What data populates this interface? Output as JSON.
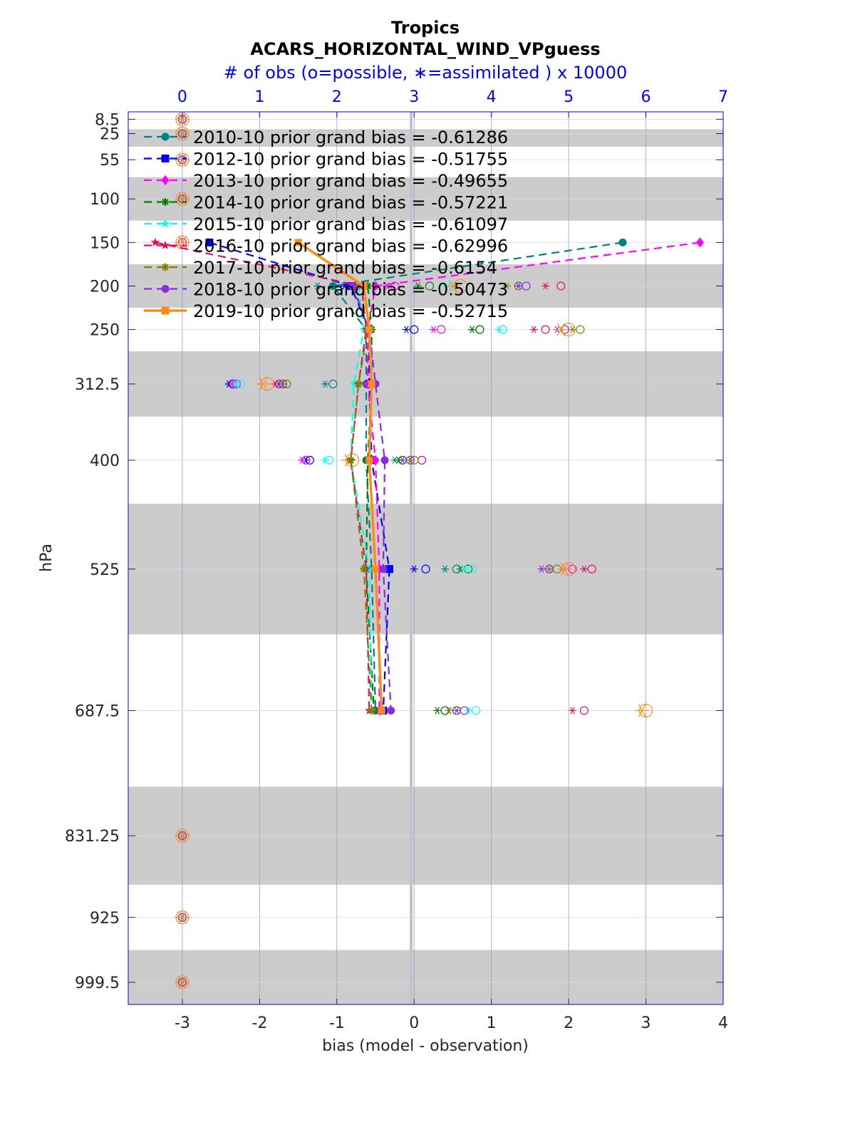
{
  "chart_data": {
    "type": "line",
    "title": "Tropics",
    "subtitle": "ACARS_HORIZONTAL_WIND_VPguess",
    "top_axis_label": "# of obs (o=possible, ∗=assimilated ) x 10000",
    "xlabel": "bias (model - observation)",
    "ylabel": "hPa",
    "xlim": [
      -3.7,
      4.0
    ],
    "x_ticks": [
      -3,
      -2,
      -1,
      0,
      1,
      2,
      3,
      4
    ],
    "x_tick_labels": [
      "-3",
      "-2",
      "-1",
      "0",
      "1",
      "2",
      "3",
      "4"
    ],
    "top_xlim": [
      -0.7,
      7.0
    ],
    "top_ticks": [
      0,
      1,
      2,
      3,
      4,
      5,
      6,
      7
    ],
    "top_tick_labels": [
      "0",
      "1",
      "2",
      "3",
      "4",
      "5",
      "6",
      "7"
    ],
    "y_scale": "pressure (reversed)",
    "ylim": [
      0,
      1025
    ],
    "pressure_levels": [
      8.5,
      25,
      55,
      100,
      150,
      200,
      250,
      312.5,
      400,
      525,
      687.5,
      831.25,
      925,
      999.5
    ],
    "y_tick_labels": [
      "8.5",
      "25",
      "55",
      "100",
      "150",
      "200",
      "250",
      "312.5",
      "400",
      "525",
      "687.5",
      "831.25",
      "925",
      "999.5"
    ],
    "layer_edges": [
      0,
      20,
      40,
      75,
      125,
      175,
      225,
      275,
      350,
      450,
      600,
      775,
      887.5,
      962.5,
      1025
    ],
    "grid": true,
    "legend_location": "top-left",
    "series": [
      {
        "name": "2010-10",
        "legend": "2010-10 prior grand bias = -0.61286",
        "color": "#008080",
        "marker": "circle",
        "style": "dashed",
        "bias": [
          null,
          null,
          null,
          null,
          2.7,
          -1.05,
          -0.62,
          -0.62,
          -0.62,
          -0.55,
          -0.5,
          null,
          null,
          null
        ],
        "obs_possible": [
          0,
          0,
          0,
          0,
          null,
          2.25,
          3.85,
          1.95,
          2.85,
          3.55,
          3.55,
          0,
          0,
          0
        ],
        "obs_assim": [
          0,
          0,
          0,
          0,
          null,
          1.75,
          3.75,
          1.85,
          2.75,
          3.4,
          3.45,
          0,
          0,
          0
        ]
      },
      {
        "name": "2012-10",
        "legend": "2012-10 prior grand bias = -0.51755",
        "color": "#0000ff",
        "marker": "square",
        "style": "dashed",
        "bias": [
          null,
          null,
          null,
          null,
          -2.65,
          -0.82,
          -0.58,
          -0.58,
          -0.55,
          -0.32,
          -0.4,
          null,
          null,
          null
        ],
        "obs_possible": [
          0,
          0,
          0,
          0,
          null,
          2.25,
          3.0,
          0.65,
          1.65,
          3.15,
          3.55,
          0,
          0,
          0
        ],
        "obs_assim": [
          0,
          0,
          0,
          0,
          null,
          2.1,
          2.9,
          0.6,
          1.6,
          3.0,
          3.45,
          0,
          0,
          0
        ]
      },
      {
        "name": "2013-10",
        "legend": "2013-10 prior grand bias = -0.49655",
        "color": "#ff00ff",
        "marker": "diamond",
        "style": "dashed",
        "bias": [
          null,
          null,
          null,
          null,
          3.7,
          -0.5,
          -0.6,
          -0.6,
          -0.5,
          -0.45,
          -0.45,
          null,
          null,
          null
        ],
        "obs_possible": [
          0,
          0,
          0,
          0,
          null,
          2.75,
          3.35,
          0.7,
          1.6,
          5.05,
          3.4,
          0,
          0,
          0
        ],
        "obs_assim": [
          0,
          0,
          0,
          0,
          null,
          2.65,
          3.25,
          0.65,
          1.55,
          4.95,
          3.3,
          0,
          0,
          0
        ]
      },
      {
        "name": "2014-10",
        "legend": "2014-10 prior grand bias = -0.57221",
        "color": "#008000",
        "marker": "star",
        "style": "dashed",
        "bias": [
          null,
          null,
          null,
          null,
          null,
          -0.6,
          -0.55,
          -0.55,
          -0.6,
          -0.62,
          -0.52,
          null,
          null,
          null
        ],
        "obs_possible": [
          0,
          0,
          0,
          0,
          null,
          3.2,
          3.85,
          1.35,
          2.85,
          3.7,
          3.4,
          0,
          0,
          0
        ],
        "obs_assim": [
          0,
          0,
          0,
          0,
          null,
          3.05,
          3.75,
          1.3,
          2.8,
          3.6,
          3.3,
          0,
          0,
          0
        ]
      },
      {
        "name": "2015-10",
        "legend": "2015-10 prior grand bias = -0.61097",
        "color": "#00ffff",
        "marker": "hexagram",
        "style": "dashed",
        "bias": [
          null,
          null,
          null,
          null,
          null,
          -0.72,
          -0.65,
          -0.78,
          -0.82,
          -0.58,
          -0.55,
          null,
          null,
          null
        ],
        "obs_possible": [
          0,
          0,
          0,
          0,
          null,
          3.5,
          4.15,
          0.75,
          1.9,
          3.75,
          3.8,
          0,
          0,
          0
        ],
        "obs_assim": [
          0,
          0,
          0,
          0,
          null,
          3.4,
          4.1,
          0.7,
          1.85,
          3.65,
          3.7,
          0,
          0,
          0
        ]
      },
      {
        "name": "2016-10",
        "legend": "2016-10 prior grand bias = -0.62996",
        "color": "#e0115f",
        "marker": "pentagram",
        "style": "dashed",
        "bias": [
          null,
          null,
          null,
          null,
          -3.35,
          -0.68,
          -0.62,
          -0.72,
          -0.82,
          -0.62,
          -0.58,
          null,
          null,
          null
        ],
        "obs_possible": [
          0,
          0,
          0,
          0,
          0,
          4.9,
          4.7,
          1.25,
          3.1,
          5.3,
          5.2,
          0,
          0,
          0
        ],
        "obs_assim": [
          0,
          0,
          0,
          0,
          0,
          4.7,
          4.55,
          1.2,
          2.95,
          5.2,
          5.05,
          0,
          0,
          0
        ]
      },
      {
        "name": "2017-10",
        "legend": "2017-10 prior grand bias = -0.6154",
        "color": "#808000",
        "marker": "star",
        "style": "dashed",
        "bias": [
          null,
          null,
          null,
          null,
          null,
          -0.78,
          -0.6,
          -0.72,
          -0.82,
          -0.65,
          -0.55,
          null,
          null,
          null
        ],
        "obs_possible": [
          0,
          0,
          0,
          0,
          null,
          4.35,
          5.15,
          1.35,
          3.0,
          4.85,
          3.55,
          0,
          0,
          0
        ],
        "obs_assim": [
          0,
          0,
          0,
          0,
          null,
          4.2,
          5.05,
          1.3,
          2.95,
          4.75,
          3.45,
          0,
          0,
          0
        ]
      },
      {
        "name": "2018-10",
        "legend": "2018-10 prior grand bias = -0.50473",
        "color": "#8a2be2",
        "marker": "circle",
        "style": "dashed",
        "bias": [
          null,
          null,
          null,
          null,
          null,
          -0.8,
          -0.58,
          -0.5,
          -0.38,
          -0.4,
          -0.3,
          null,
          null,
          null
        ],
        "obs_possible": [
          0,
          0,
          0,
          0,
          null,
          4.45,
          4.95,
          1.3,
          2.95,
          4.75,
          3.65,
          0,
          0,
          0
        ],
        "obs_assim": [
          0,
          0,
          0,
          0,
          null,
          4.35,
          4.85,
          1.25,
          2.85,
          4.65,
          3.55,
          0,
          0,
          0
        ]
      },
      {
        "name": "2019-10",
        "legend": "2019-10 prior grand bias = -0.52715",
        "color": "#ff8c1a",
        "marker": "square",
        "style": "solid",
        "bias": [
          null,
          null,
          null,
          null,
          -1.5,
          -0.65,
          -0.58,
          -0.55,
          -0.58,
          -0.5,
          -0.42,
          null,
          null,
          null
        ],
        "obs_possible": [
          0,
          0,
          0,
          0,
          0,
          3.6,
          5.0,
          1.1,
          2.2,
          5.0,
          6.0,
          0,
          0,
          0
        ],
        "obs_assim": [
          0,
          0,
          0,
          0,
          0,
          3.5,
          4.9,
          1.05,
          2.15,
          4.95,
          5.95,
          0,
          0,
          0
        ]
      }
    ]
  }
}
